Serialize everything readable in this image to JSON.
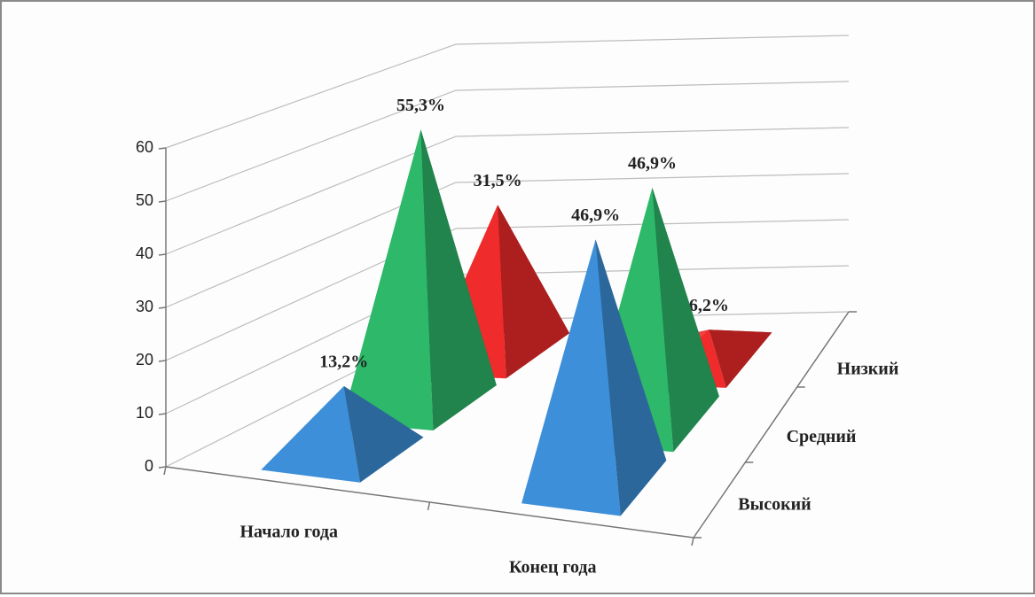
{
  "chart_data": {
    "type": "pyramid3d",
    "categories": [
      "Начало года",
      "Конец года"
    ],
    "series": [
      {
        "name": "Высокий",
        "color": "#3d8fd9",
        "values": [
          13.2,
          46.9
        ],
        "value_labels": [
          "13,2%",
          "46,9%"
        ]
      },
      {
        "name": "Средний",
        "color": "#2db86a",
        "values": [
          55.3,
          46.9
        ],
        "value_labels": [
          "55,3%",
          "46,9%"
        ]
      },
      {
        "name": "Низкий",
        "color": "#f02b2b",
        "values": [
          31.5,
          6.2
        ],
        "value_labels": [
          "31,5%",
          "6,2%"
        ]
      }
    ],
    "ylim": [
      0,
      60
    ],
    "yticks": [
      0,
      10,
      20,
      30,
      40,
      50,
      60
    ],
    "grid": true
  }
}
